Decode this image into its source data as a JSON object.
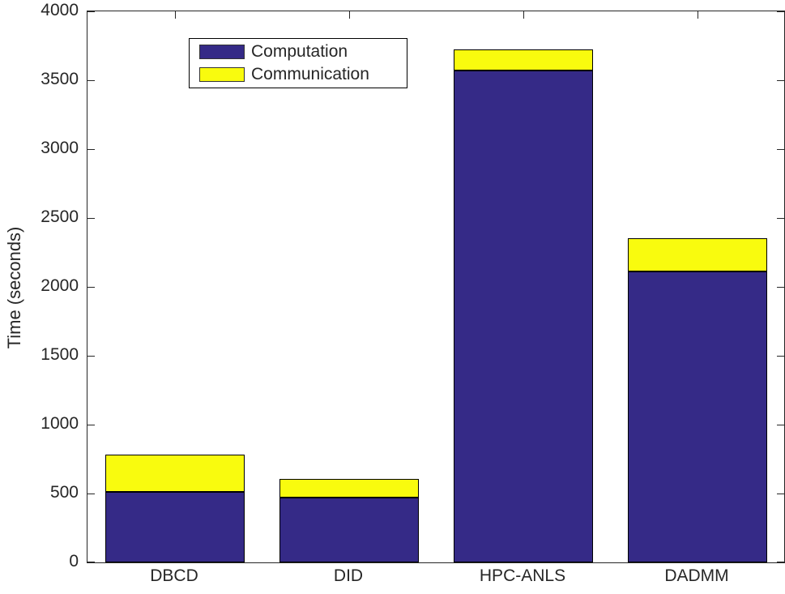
{
  "chart_data": {
    "type": "bar",
    "stacked": true,
    "title": "",
    "xlabel": "",
    "ylabel": "Time (seconds)",
    "categories": [
      "DBCD",
      "DID",
      "HPC-ANLS",
      "DADMM"
    ],
    "series": [
      {
        "name": "Computation",
        "color": "#352A87",
        "values": [
          510,
          470,
          3570,
          2110
        ]
      },
      {
        "name": "Communication",
        "color": "#F9FB0E",
        "values": [
          270,
          135,
          155,
          240
        ]
      }
    ],
    "totals": [
      780,
      605,
      3725,
      2350
    ],
    "ylim": [
      0,
      4000
    ],
    "yticks": [
      0,
      500,
      1000,
      1500,
      2000,
      2500,
      3000,
      3500,
      4000
    ],
    "grid": false,
    "legend_position": "top-left",
    "bar_edge_color": "#000000",
    "axis_color": "#262626",
    "background_color": "#ffffff"
  }
}
